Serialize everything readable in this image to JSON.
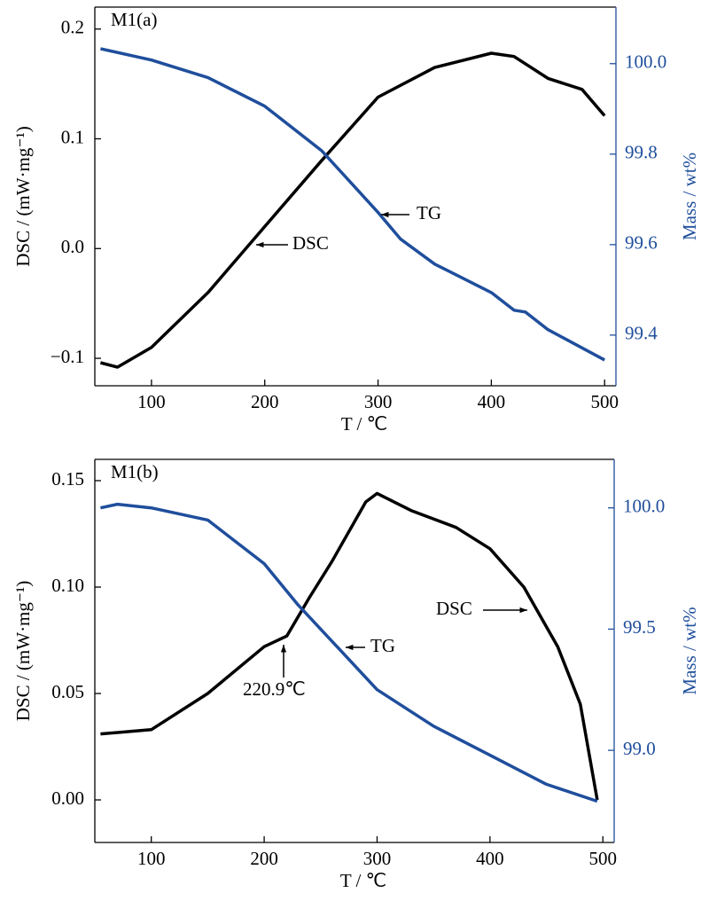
{
  "chart_data": [
    {
      "type": "line",
      "title": "M1(a)",
      "x_label": "T / ℃",
      "y_label": "DSC / (mW·mg⁻¹)",
      "y2_label": "Mass / wt%",
      "xlim": [
        50,
        510
      ],
      "xticks": [
        100,
        200,
        300,
        400,
        500
      ],
      "ylim": [
        -0.125,
        0.22
      ],
      "yticks": [
        {
          "value": -0.1,
          "label": "−0.1"
        },
        {
          "value": 0,
          "label": "0.0"
        },
        0.1,
        0.2
      ],
      "y2lim": [
        99.288,
        100.125
      ],
      "y2ticks": [
        99.4,
        99.6,
        99.8,
        {
          "value": 100.0,
          "label": "100.0"
        }
      ],
      "annotations": [
        "TG",
        "DSC"
      ],
      "series": [
        {
          "name": "DSC",
          "color": "#000000",
          "x": [
            55,
            70,
            100,
            150,
            200,
            250,
            300,
            350,
            400,
            420,
            450,
            480,
            500
          ],
          "values": [
            -0.104,
            -0.108,
            -0.09,
            -0.04,
            0.02,
            0.08,
            0.138,
            0.165,
            0.178,
            0.175,
            0.155,
            0.145,
            0.121
          ]
        },
        {
          "name": "TG",
          "color": "#1f4e9c",
          "axis": "y2",
          "x": [
            55,
            100,
            150,
            200,
            250,
            300,
            320,
            350,
            400,
            420,
            430,
            450,
            500
          ],
          "values": [
            100.033,
            100.008,
            99.969,
            99.906,
            99.808,
            99.671,
            99.612,
            99.557,
            99.494,
            99.455,
            99.451,
            99.412,
            99.345
          ]
        }
      ]
    },
    {
      "type": "line",
      "title": "M1(b)",
      "x_label": "T / ℃",
      "y_label": "DSC / (mW·mg⁻¹)",
      "y2_label": "Mass / wt%",
      "xlim": [
        50,
        510
      ],
      "xticks": [
        100,
        200,
        300,
        400,
        500
      ],
      "ylim": [
        -0.02,
        0.16
      ],
      "yticks": [
        {
          "value": 0,
          "label": "0.00"
        },
        {
          "value": 0.05,
          "label": "0.05"
        },
        {
          "value": 0.1,
          "label": "0.10"
        },
        {
          "value": 0.15,
          "label": "0.15"
        }
      ],
      "y2lim": [
        98.62,
        100.2
      ],
      "y2ticks": [
        {
          "value": 99,
          "label": "99.0"
        },
        {
          "value": 99.5,
          "label": "99.5"
        },
        {
          "value": 100,
          "label": "100.0"
        }
      ],
      "annotations": [
        "DSC",
        "TG",
        "220.9℃"
      ],
      "series": [
        {
          "name": "DSC",
          "color": "#000000",
          "x": [
            55,
            100,
            150,
            200,
            220,
            240,
            260,
            290,
            300,
            330,
            370,
            400,
            430,
            460,
            480,
            495
          ],
          "values": [
            0.031,
            0.033,
            0.05,
            0.072,
            0.077,
            0.095,
            0.112,
            0.14,
            0.144,
            0.136,
            0.128,
            0.118,
            0.1,
            0.072,
            0.045,
            0.0
          ]
        },
        {
          "name": "TG",
          "color": "#1f4e9c",
          "axis": "y2",
          "x": [
            55,
            70,
            100,
            150,
            200,
            230,
            250,
            300,
            350,
            400,
            450,
            495
          ],
          "values": [
            100.0,
            100.015,
            100.0,
            99.95,
            99.77,
            99.6,
            99.5,
            99.25,
            99.1,
            98.98,
            98.86,
            98.79
          ]
        }
      ]
    }
  ]
}
